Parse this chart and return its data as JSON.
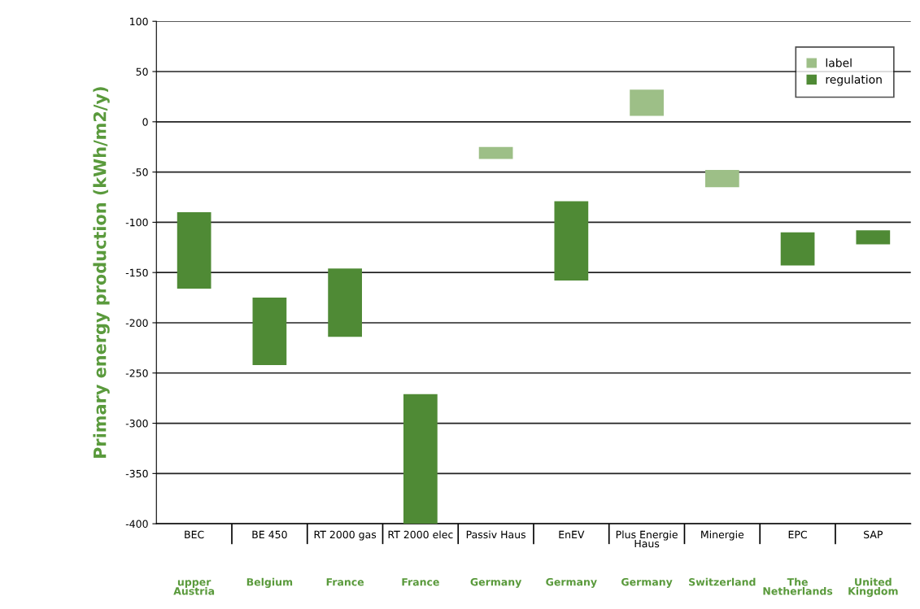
{
  "chart_data": {
    "type": "bar",
    "ylabel": "Primary energy production (kWh/m2/y)",
    "categories": [
      "BEC",
      "BE 450",
      "RT 2000 gas",
      "RT 2000 elec",
      "Passiv Haus",
      "EnEV",
      "Plus Energie\nHaus",
      "Minergie",
      "EPC",
      "SAP"
    ],
    "series": [
      {
        "name": "label",
        "color": "#9dbf87",
        "base": [
          null,
          null,
          null,
          null,
          -37,
          null,
          6,
          -65,
          null,
          null
        ],
        "values": [
          null,
          null,
          null,
          null,
          12,
          null,
          26,
          17,
          null,
          null
        ]
      },
      {
        "name": "regulation",
        "color": "#4f8a35",
        "base": [
          -166,
          -242,
          -214,
          -400,
          null,
          -158,
          null,
          null,
          -143,
          -122
        ],
        "values": [
          76,
          67,
          68,
          129,
          null,
          79,
          null,
          null,
          33,
          14
        ]
      }
    ],
    "annotations": [
      "upper\nAustria",
      "Belgium",
      "France",
      "France",
      "Germany",
      "Germany",
      "Germany",
      "Switzerland",
      "The\nNetherlands",
      "United\nKingdom"
    ],
    "ylim": [
      -400,
      100
    ],
    "yticks": [
      -400,
      -350,
      -300,
      -250,
      -200,
      -150,
      -100,
      -50,
      0,
      50,
      100
    ],
    "grid": "y",
    "legend": "top right"
  }
}
